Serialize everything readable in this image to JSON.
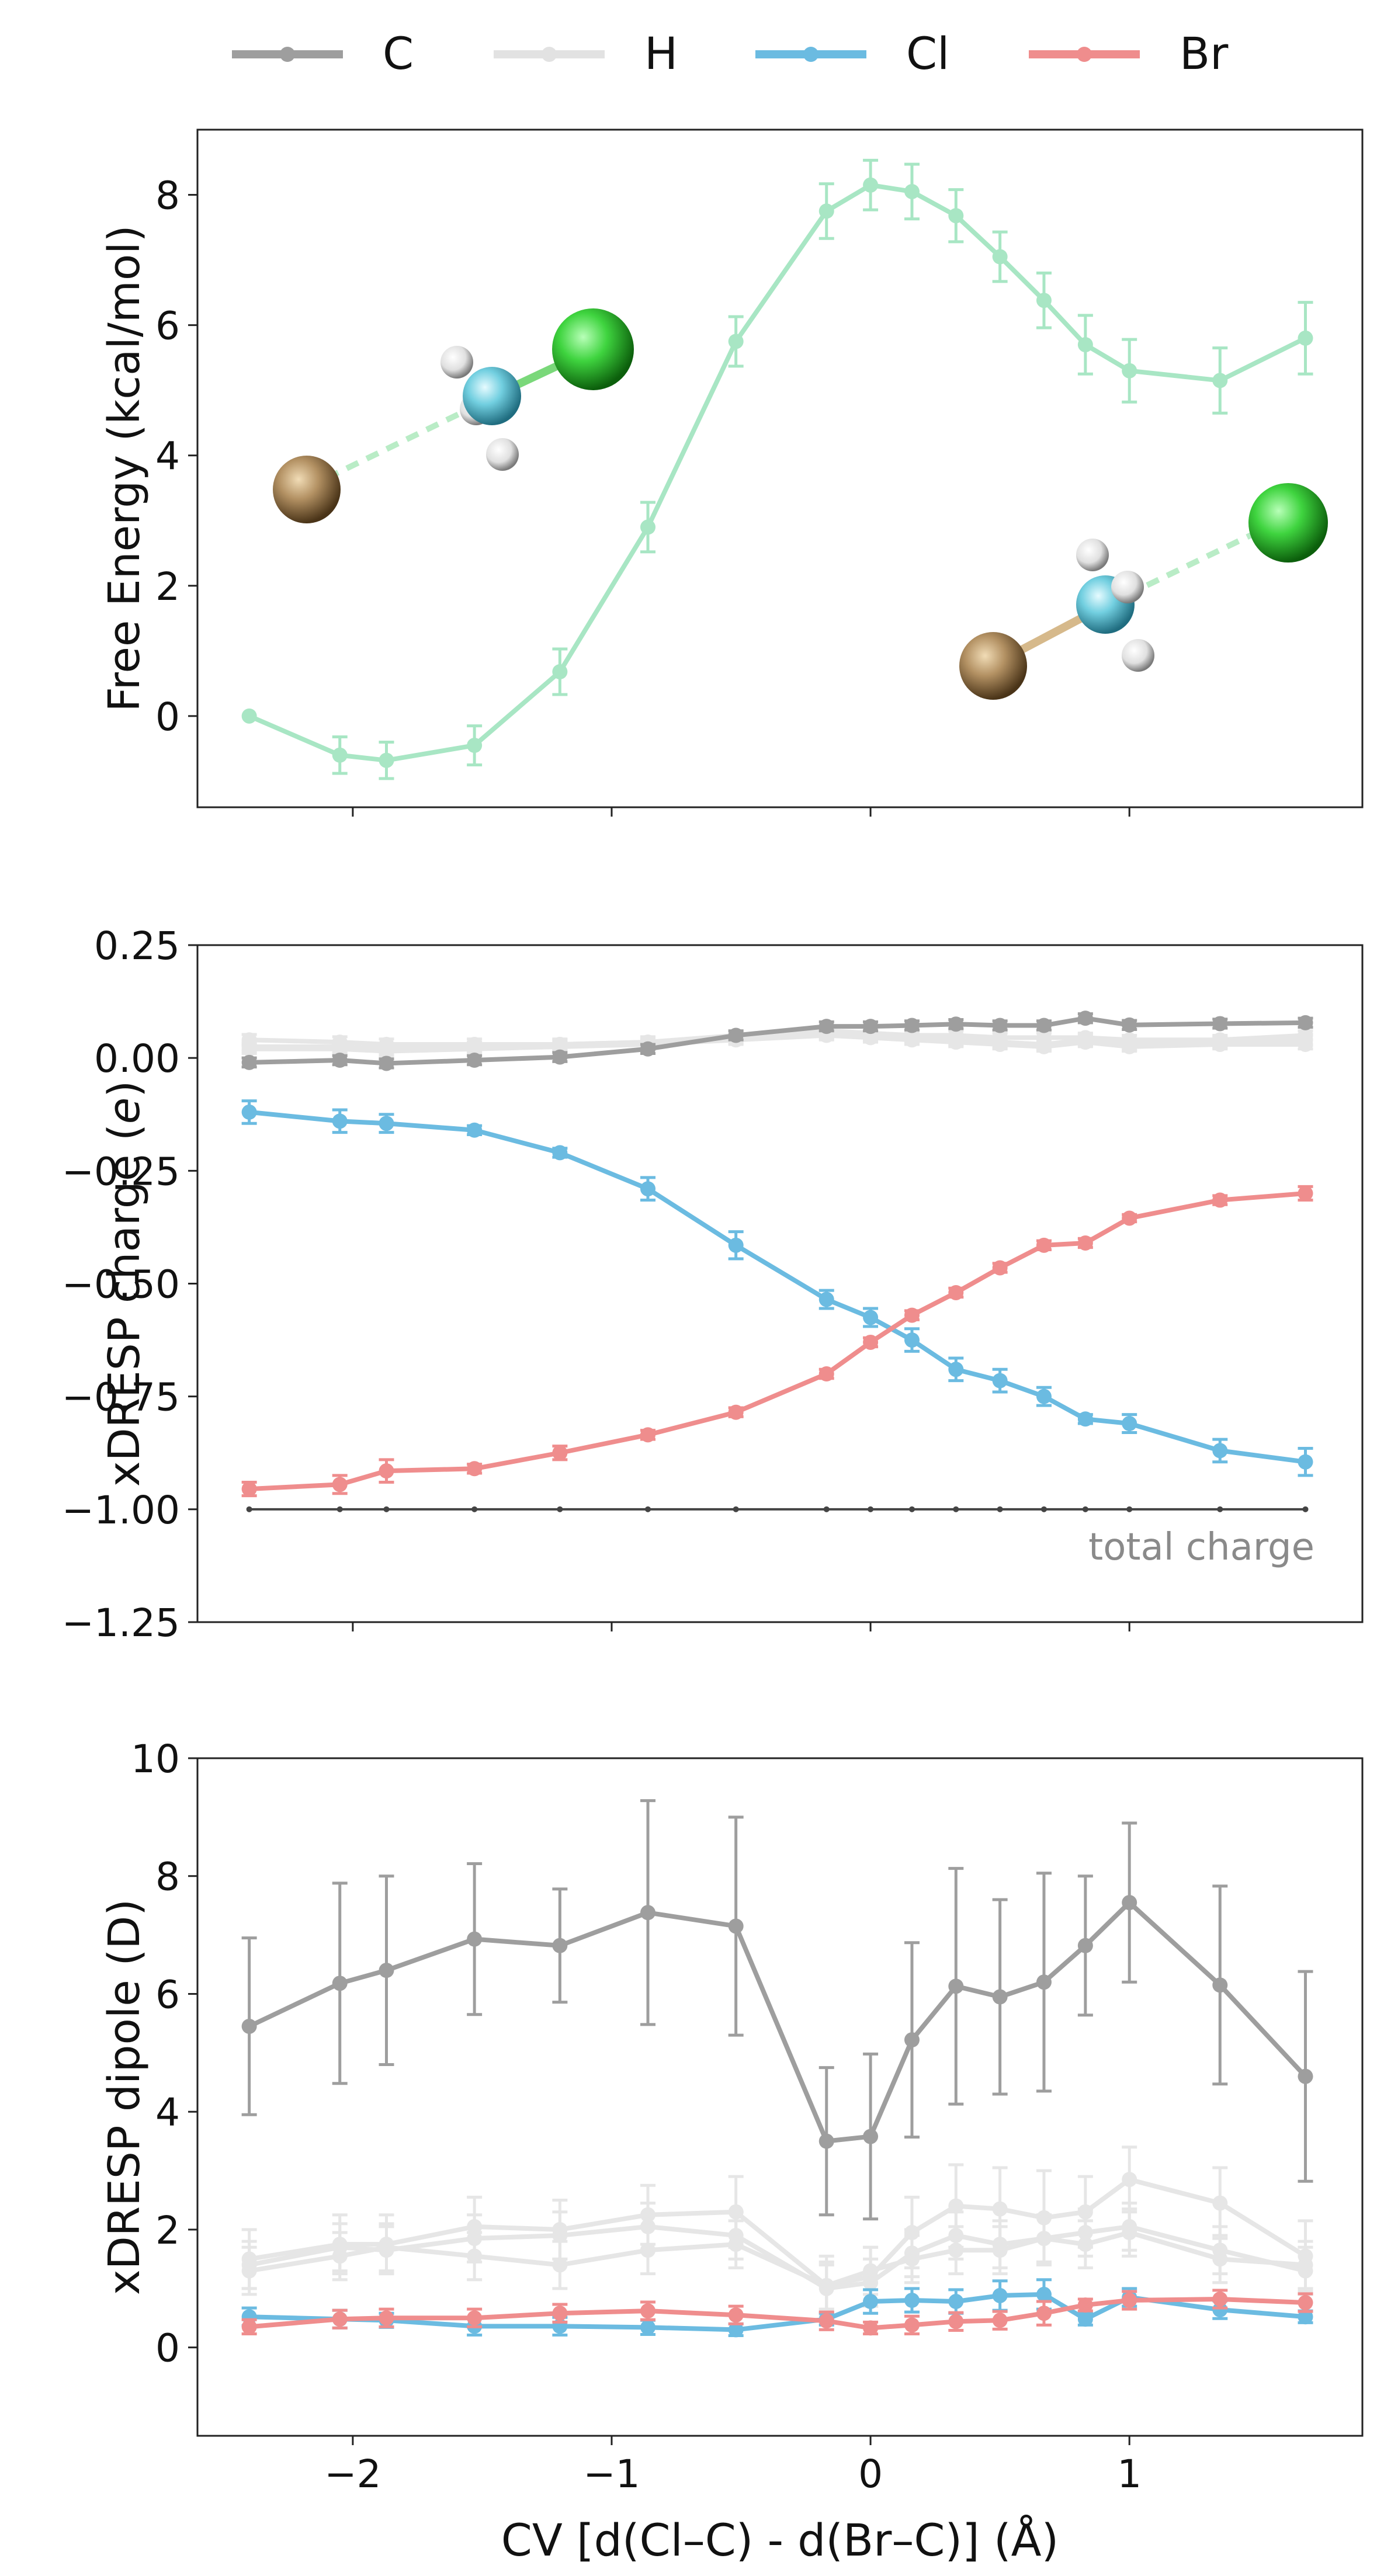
{
  "legend": {
    "items": [
      {
        "name": "C",
        "color": "#9e9e9e"
      },
      {
        "name": "H",
        "color": "#e2e2e2"
      },
      {
        "name": "Cl",
        "color": "#6bbbe1"
      },
      {
        "name": "Br",
        "color": "#ef8d8d"
      }
    ]
  },
  "chart_data": [
    {
      "type": "line",
      "ylabel": "Free Energy (kcal/mol)",
      "xlim": [
        -2.6,
        1.9
      ],
      "ylim": [
        -1.4,
        9.0
      ],
      "yticks": [
        0,
        2,
        4,
        6,
        8
      ],
      "xticks": [
        -2,
        -1,
        0,
        1
      ],
      "show_xticklabels": false,
      "x": [
        -2.4,
        -2.05,
        -1.87,
        -1.53,
        -1.2,
        -0.86,
        -0.52,
        -0.17,
        0.0,
        0.16,
        0.33,
        0.5,
        0.67,
        0.83,
        1.0,
        1.35,
        1.68
      ],
      "series": [
        {
          "color": "#a8e6c4",
          "values": [
            0.0,
            -0.6,
            -0.68,
            -0.45,
            0.68,
            2.9,
            5.75,
            7.75,
            8.15,
            8.05,
            7.68,
            7.05,
            6.38,
            5.7,
            5.3,
            5.15,
            5.8
          ],
          "errors": [
            0.0,
            0.28,
            0.28,
            0.3,
            0.35,
            0.38,
            0.38,
            0.42,
            0.38,
            0.42,
            0.4,
            0.38,
            0.42,
            0.45,
            0.48,
            0.5,
            0.55
          ]
        }
      ]
    },
    {
      "type": "line",
      "ylabel": "xDRESP charge (e)",
      "ylabel_main": "xDRESP charge (",
      "ylabel_italic": "e",
      "ylabel_end": ")",
      "xlim": [
        -2.6,
        1.9
      ],
      "ylim": [
        -1.25,
        0.25
      ],
      "yticks": [
        -1.25,
        -1.0,
        -0.75,
        -0.5,
        -0.25,
        0.0,
        0.25
      ],
      "ytick_labels": [
        "−1.25",
        "−1.00",
        "−0.75",
        "−0.50",
        "−0.25",
        "0.00",
        "0.25"
      ],
      "xticks": [
        -2,
        -1,
        0,
        1
      ],
      "show_xticklabels": false,
      "annotation": "total charge",
      "x": [
        -2.4,
        -2.05,
        -1.87,
        -1.53,
        -1.2,
        -0.86,
        -0.52,
        -0.17,
        0.0,
        0.16,
        0.33,
        0.5,
        0.67,
        0.83,
        1.0,
        1.35,
        1.68
      ],
      "series": [
        {
          "color": "#e6e6e6",
          "values": [
            0.04,
            0.035,
            0.03,
            0.03,
            0.03,
            0.035,
            0.045,
            0.055,
            0.05,
            0.045,
            0.04,
            0.035,
            0.03,
            0.04,
            0.03,
            0.035,
            0.04
          ],
          "errors": [
            0.012,
            0.012,
            0.012,
            0.012,
            0.012,
            0.012,
            0.012,
            0.012,
            0.012,
            0.012,
            0.012,
            0.012,
            0.012,
            0.012,
            0.012,
            0.012,
            0.012
          ]
        },
        {
          "color": "#e6e6e6",
          "values": [
            0.025,
            0.025,
            0.02,
            0.025,
            0.03,
            0.035,
            0.05,
            0.06,
            0.055,
            0.05,
            0.05,
            0.045,
            0.045,
            0.045,
            0.04,
            0.04,
            0.05
          ],
          "errors": [
            0.01,
            0.01,
            0.01,
            0.01,
            0.01,
            0.01,
            0.01,
            0.01,
            0.01,
            0.01,
            0.01,
            0.01,
            0.01,
            0.01,
            0.01,
            0.01,
            0.01
          ]
        },
        {
          "color": "#e6e6e6",
          "values": [
            0.02,
            0.02,
            0.015,
            0.02,
            0.025,
            0.03,
            0.04,
            0.05,
            0.045,
            0.04,
            0.035,
            0.03,
            0.025,
            0.035,
            0.025,
            0.03,
            0.03
          ],
          "errors": [
            0.01,
            0.01,
            0.01,
            0.01,
            0.01,
            0.01,
            0.01,
            0.01,
            0.01,
            0.01,
            0.01,
            0.01,
            0.01,
            0.01,
            0.01,
            0.01,
            0.01
          ]
        },
        {
          "color": "#9e9e9e",
          "values": [
            -0.01,
            -0.005,
            -0.012,
            -0.005,
            0.002,
            0.02,
            0.05,
            0.07,
            0.07,
            0.072,
            0.075,
            0.072,
            0.072,
            0.088,
            0.073,
            0.076,
            0.078
          ],
          "errors": [
            0.01,
            0.01,
            0.01,
            0.01,
            0.01,
            0.01,
            0.01,
            0.01,
            0.01,
            0.01,
            0.01,
            0.01,
            0.01,
            0.01,
            0.01,
            0.01,
            0.01
          ]
        },
        {
          "color": "#6bbbe1",
          "values": [
            -0.12,
            -0.14,
            -0.145,
            -0.16,
            -0.21,
            -0.29,
            -0.415,
            -0.535,
            -0.575,
            -0.625,
            -0.69,
            -0.715,
            -0.75,
            -0.8,
            -0.81,
            -0.87,
            -0.895
          ],
          "errors": [
            0.025,
            0.025,
            0.02,
            0.01,
            0.01,
            0.025,
            0.03,
            0.02,
            0.02,
            0.025,
            0.025,
            0.025,
            0.02,
            0.01,
            0.02,
            0.025,
            0.03
          ]
        },
        {
          "color": "#ef8d8d",
          "values": [
            -0.955,
            -0.945,
            -0.915,
            -0.91,
            -0.875,
            -0.835,
            -0.785,
            -0.7,
            -0.63,
            -0.57,
            -0.52,
            -0.465,
            -0.415,
            -0.41,
            -0.355,
            -0.315,
            -0.3
          ],
          "errors": [
            0.015,
            0.02,
            0.025,
            0.01,
            0.015,
            0.01,
            0.01,
            0.01,
            0.01,
            0.01,
            0.01,
            0.01,
            0.01,
            0.01,
            0.008,
            0.01,
            0.015
          ]
        },
        {
          "color": "#444444",
          "dashed": false,
          "small": true,
          "values": [
            -1.0,
            -1.0,
            -1.0,
            -1.0,
            -1.0,
            -1.0,
            -1.0,
            -1.0,
            -1.0,
            -1.0,
            -1.0,
            -1.0,
            -1.0,
            -1.0,
            -1.0,
            -1.0,
            -1.0
          ],
          "errors": [
            0,
            0,
            0,
            0,
            0,
            0,
            0,
            0,
            0,
            0,
            0,
            0,
            0,
            0,
            0,
            0,
            0
          ]
        }
      ]
    },
    {
      "type": "line",
      "ylabel": "xDRESP dipole (D)",
      "xlabel": "CV [d(Cl–C) - d(Br–C)] (Å)",
      "xlim": [
        -2.6,
        1.9
      ],
      "ylim": [
        -1.5,
        10.0
      ],
      "yticks": [
        0,
        2,
        4,
        6,
        8,
        10
      ],
      "xticks": [
        -2,
        -1,
        0,
        1
      ],
      "xtick_labels": [
        "−2",
        "−1",
        "0",
        "1"
      ],
      "show_xticklabels": true,
      "x": [
        -2.4,
        -2.05,
        -1.87,
        -1.53,
        -1.2,
        -0.86,
        -0.52,
        -0.17,
        0.0,
        0.16,
        0.33,
        0.5,
        0.67,
        0.83,
        1.0,
        1.35,
        1.68
      ],
      "series": [
        {
          "color": "#e6e6e6",
          "values": [
            1.5,
            1.75,
            1.75,
            2.05,
            2.0,
            2.25,
            2.3,
            1.05,
            1.2,
            1.95,
            2.4,
            2.35,
            2.2,
            2.3,
            2.85,
            2.45,
            1.55
          ],
          "errors": [
            0.5,
            0.5,
            0.5,
            0.5,
            0.5,
            0.5,
            0.6,
            0.5,
            0.5,
            0.6,
            0.7,
            0.7,
            0.8,
            0.6,
            0.55,
            0.6,
            0.6
          ]
        },
        {
          "color": "#e6e6e6",
          "values": [
            1.4,
            1.7,
            1.65,
            1.85,
            1.9,
            2.05,
            1.9,
            1.0,
            1.1,
            1.6,
            1.9,
            1.75,
            1.85,
            1.95,
            2.05,
            1.65,
            1.3
          ],
          "errors": [
            0.4,
            0.4,
            0.4,
            0.4,
            0.4,
            0.4,
            0.4,
            0.4,
            0.4,
            0.4,
            0.4,
            0.4,
            0.4,
            0.4,
            0.4,
            0.4,
            0.4
          ]
        },
        {
          "color": "#e6e6e6",
          "values": [
            1.3,
            1.55,
            1.7,
            1.55,
            1.4,
            1.65,
            1.75,
            1.05,
            1.3,
            1.5,
            1.65,
            1.65,
            1.85,
            1.75,
            1.95,
            1.5,
            1.4
          ],
          "errors": [
            0.4,
            0.4,
            0.4,
            0.4,
            0.4,
            0.4,
            0.4,
            0.4,
            0.4,
            0.4,
            0.4,
            0.4,
            0.4,
            0.4,
            0.4,
            0.4,
            0.4
          ]
        },
        {
          "color": "#9e9e9e",
          "values": [
            5.45,
            6.18,
            6.4,
            6.93,
            6.82,
            7.38,
            7.15,
            3.5,
            3.58,
            5.22,
            6.13,
            5.95,
            6.2,
            6.82,
            7.55,
            6.15,
            4.6
          ],
          "errors": [
            1.5,
            1.7,
            1.6,
            1.28,
            0.96,
            1.9,
            1.85,
            1.25,
            1.4,
            1.65,
            2.0,
            1.65,
            1.85,
            1.18,
            1.35,
            1.68,
            1.78
          ]
        },
        {
          "color": "#6bbbe1",
          "values": [
            0.52,
            0.48,
            0.46,
            0.36,
            0.36,
            0.34,
            0.3,
            0.48,
            0.78,
            0.8,
            0.78,
            0.88,
            0.9,
            0.48,
            0.85,
            0.64,
            0.52
          ],
          "errors": [
            0.15,
            0.15,
            0.12,
            0.15,
            0.15,
            0.12,
            0.1,
            0.1,
            0.2,
            0.2,
            0.2,
            0.25,
            0.25,
            0.1,
            0.15,
            0.15,
            0.1
          ]
        },
        {
          "color": "#ef8d8d",
          "values": [
            0.35,
            0.48,
            0.5,
            0.5,
            0.58,
            0.62,
            0.55,
            0.45,
            0.33,
            0.38,
            0.44,
            0.46,
            0.58,
            0.72,
            0.8,
            0.82,
            0.76
          ],
          "errors": [
            0.12,
            0.15,
            0.15,
            0.15,
            0.15,
            0.15,
            0.15,
            0.15,
            0.1,
            0.15,
            0.15,
            0.15,
            0.2,
            0.1,
            0.15,
            0.15,
            0.15
          ]
        }
      ]
    }
  ]
}
